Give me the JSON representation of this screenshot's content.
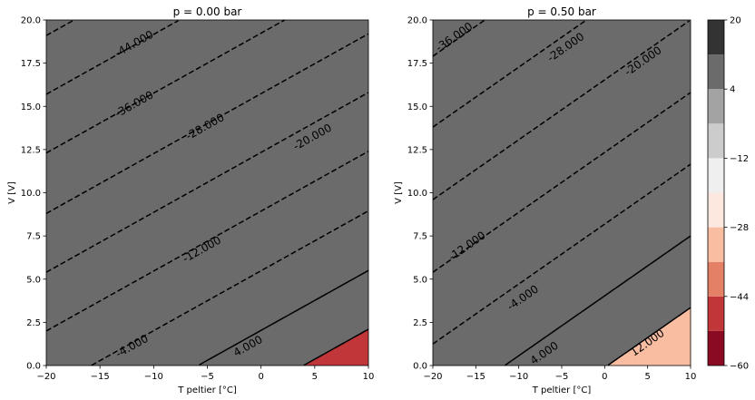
{
  "chart_data": {
    "type": "contour",
    "colorbar": {
      "levels": [
        -60,
        -52,
        -44,
        -36,
        -28,
        -20,
        -12,
        -4,
        4,
        12,
        20
      ],
      "colors": [
        "#8b0a23",
        "#c13639",
        "#e48066",
        "#f9bda2",
        "#fde8df",
        "#efefef",
        "#cccccc",
        "#a3a3a3",
        "#6b6b6b",
        "#333333"
      ],
      "tick_labels": [
        "20",
        "4",
        "−12",
        "−28",
        "−44",
        "−60"
      ],
      "tick_values": [
        20,
        4,
        -12,
        -28,
        -44,
        -60
      ]
    },
    "panels": [
      {
        "title": "p = 0.00 bar",
        "xlabel": "T peltier [°C]",
        "ylabel": "V [V]",
        "xlim": [
          -20,
          10
        ],
        "ylim": [
          0,
          20
        ],
        "xticks": [
          -20,
          -15,
          -10,
          -5,
          0,
          5,
          10
        ],
        "xtick_labels": [
          "−20",
          "−15",
          "−10",
          "−5",
          "0",
          "5",
          "10"
        ],
        "yticks": [
          0,
          2.5,
          5,
          7.5,
          10,
          12.5,
          15,
          17.5,
          20
        ],
        "ytick_labels": [
          "0.0",
          "2.5",
          "5.0",
          "7.5",
          "10.0",
          "12.5",
          "15.0",
          "17.5",
          "20.0"
        ],
        "contour_lines": [
          {
            "level": -52,
            "y_at_xmin": 19.1,
            "slope": 0.3467
          },
          {
            "level": -44,
            "y_at_xmin": 15.7,
            "slope": 0.3467
          },
          {
            "level": -36,
            "y_at_xmin": 12.3,
            "slope": 0.3467
          },
          {
            "level": -28,
            "y_at_xmin": 8.8,
            "slope": 0.3467
          },
          {
            "level": -20,
            "y_at_xmin": 5.4,
            "slope": 0.3467
          },
          {
            "level": -12,
            "y_at_xmin": 2.0,
            "slope": 0.3467
          },
          {
            "level": -4,
            "y_at_xmin": -1.45,
            "slope": 0.3467
          },
          {
            "level": 4,
            "y_at_xmin": -4.9,
            "slope": 0.3467
          },
          {
            "level": 12,
            "y_at_xmin": -8.3,
            "slope": 0.3467
          }
        ],
        "contour_labels": [
          {
            "text": "-44.000",
            "x": -11.8,
            "y": 18.6
          },
          {
            "text": "-36.000",
            "x": -11.8,
            "y": 15.1
          },
          {
            "text": "-28.000",
            "x": -5.2,
            "y": 13.8
          },
          {
            "text": "-20.000",
            "x": 4.8,
            "y": 13.2
          },
          {
            "text": "-12.000",
            "x": -5.5,
            "y": 6.7
          },
          {
            "text": "-4.000",
            "x": -12.0,
            "y": 1.1
          },
          {
            "text": "4.000",
            "x": -1.2,
            "y": 1.1
          }
        ]
      },
      {
        "title": "p = 0.50 bar",
        "xlabel": "T peltier [°C]",
        "ylabel": "V [V]",
        "xlim": [
          -20,
          10
        ],
        "ylim": [
          0,
          20
        ],
        "xticks": [
          -20,
          -15,
          -10,
          -5,
          0,
          5,
          10
        ],
        "xtick_labels": [
          "−20",
          "−15",
          "−10",
          "−5",
          "0",
          "5",
          "10"
        ],
        "yticks": [
          0,
          2.5,
          5,
          7.5,
          10,
          12.5,
          15,
          17.5,
          20
        ],
        "ytick_labels": [
          "0.0",
          "2.5",
          "5.0",
          "7.5",
          "10.0",
          "12.5",
          "15.0",
          "17.5",
          "20.0"
        ],
        "contour_lines": [
          {
            "level": -36,
            "y_at_xmin": 17.9,
            "slope": 0.3467
          },
          {
            "level": -28,
            "y_at_xmin": 13.8,
            "slope": 0.3467
          },
          {
            "level": -20,
            "y_at_xmin": 9.6,
            "slope": 0.3467
          },
          {
            "level": -12,
            "y_at_xmin": 5.4,
            "slope": 0.3467
          },
          {
            "level": -4,
            "y_at_xmin": 1.25,
            "slope": 0.3467
          },
          {
            "level": 4,
            "y_at_xmin": -2.9,
            "slope": 0.3467
          },
          {
            "level": 12,
            "y_at_xmin": -7.05,
            "slope": 0.3467
          }
        ],
        "contour_labels": [
          {
            "text": "-36.000",
            "x": -17.5,
            "y": 19.0
          },
          {
            "text": "-28.000",
            "x": -4.5,
            "y": 18.4
          },
          {
            "text": "-20.000",
            "x": 4.5,
            "y": 17.6
          },
          {
            "text": "-12.000",
            "x": -16.0,
            "y": 6.9
          },
          {
            "text": "-4.000",
            "x": -9.5,
            "y": 3.9
          },
          {
            "text": "4.000",
            "x": -7.0,
            "y": 0.7
          },
          {
            "text": "12.000",
            "x": 5.0,
            "y": 1.3
          }
        ]
      }
    ]
  }
}
